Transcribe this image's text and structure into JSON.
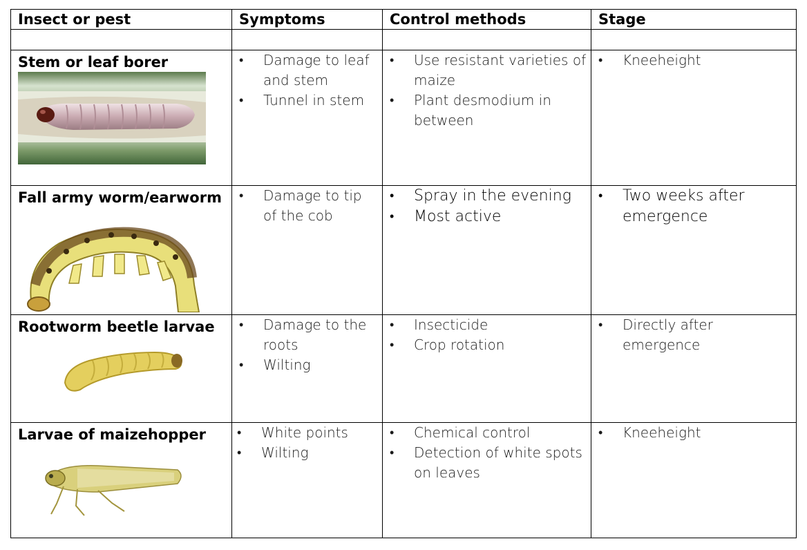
{
  "headers": {
    "pest": "Insect or pest",
    "symptoms": "Symptoms",
    "control": "Control methods",
    "stage": "Stage"
  },
  "rows": [
    {
      "name": "Stem or leaf borer",
      "symptoms": [
        "Damage to leaf and stem",
        "Tunnel in stem"
      ],
      "control": [
        "Use resistant varieties of maize",
        "Plant desmodium in between"
      ],
      "stage": [
        "Kneeheight"
      ]
    },
    {
      "name": "Fall army worm/earworm",
      "symptoms": [
        "Damage to tip of the cob"
      ],
      "control": [
        "Spray in the evening",
        "Most active"
      ],
      "stage": [
        "Two weeks after emergence"
      ]
    },
    {
      "name": "Rootworm beetle larvae",
      "symptoms": [
        "Damage to the roots",
        "Wilting"
      ],
      "control": [
        "Insecticide",
        "Crop rotation"
      ],
      "stage": [
        "Directly after emergence"
      ]
    },
    {
      "name": "Larvae of maizehopper",
      "symptoms": [
        "White points",
        "Wilting"
      ],
      "control": [
        "Chemical control",
        "Detection of white spots on leaves"
      ],
      "stage": [
        "Kneeheight"
      ]
    }
  ],
  "bullet": "•",
  "icons": {
    "row1": "stem-borer-larva-image",
    "row2": "fall-armyworm-image",
    "row3": "rootworm-larva-image",
    "row4": "leafhopper-image"
  }
}
